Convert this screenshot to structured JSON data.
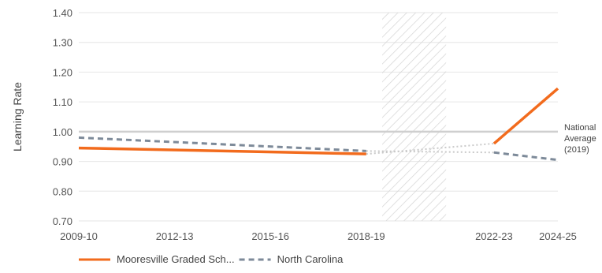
{
  "chart_data": {
    "type": "line",
    "ylabel": "Learning Rate",
    "xlabel": "",
    "title": "",
    "ylim": [
      0.7,
      1.4
    ],
    "y_ticks": [
      "0.70",
      "0.80",
      "0.90",
      "1.00",
      "1.10",
      "1.20",
      "1.30",
      "1.40"
    ],
    "x_ticks": [
      "2009-10",
      "2012-13",
      "2015-16",
      "2018-19",
      "2022-23",
      "2024-25"
    ],
    "xlim": [
      2009,
      2024
    ],
    "x_tick_values": [
      2009,
      2012,
      2015,
      2018,
      2022,
      2024
    ],
    "gap_band": [
      2018.5,
      2020.5
    ],
    "reference": {
      "value": 1.0,
      "label_lines": [
        "National",
        "Average",
        "(2019)"
      ]
    },
    "series": [
      {
        "name": "Mooresville Graded Sch...",
        "color": "#f26b1d",
        "style": "solid",
        "segments": [
          [
            [
              2009,
              0.945
            ],
            [
              2018,
              0.925
            ]
          ],
          [
            [
              2022,
              0.96
            ],
            [
              2024,
              1.145
            ]
          ]
        ],
        "connector": [
          [
            2018,
            0.925
          ],
          [
            2022,
            0.96
          ]
        ]
      },
      {
        "name": "North Carolina",
        "color": "#7d8a99",
        "style": "dashed",
        "segments": [
          [
            [
              2009,
              0.98
            ],
            [
              2018,
              0.935
            ]
          ],
          [
            [
              2022,
              0.93
            ],
            [
              2024,
              0.905
            ]
          ]
        ],
        "connector": [
          [
            2018,
            0.935
          ],
          [
            2022,
            0.93
          ]
        ]
      }
    ],
    "legend_position": "bottom-left"
  }
}
